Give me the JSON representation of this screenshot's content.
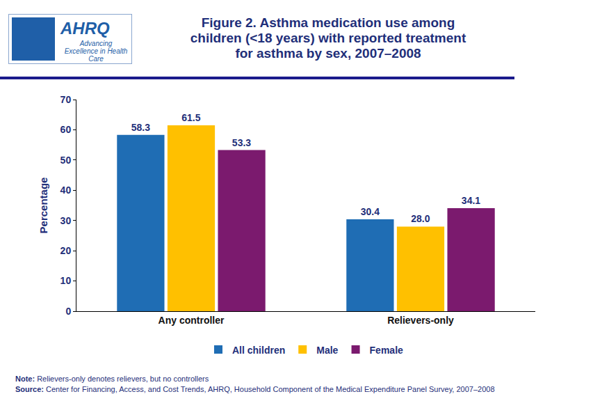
{
  "logo": {
    "name": "AHRQ",
    "tagline": "Advancing Excellence in Health Care"
  },
  "chart_data": {
    "type": "bar",
    "title": "Figure 2. Asthma medication use among children (<18 years) with reported treatment for asthma by sex, 2007–2008",
    "y_label": "Percentage",
    "categories": [
      "Any controller",
      "Relievers-only"
    ],
    "series": [
      {
        "name": "All children",
        "color": "#1f6db4",
        "values": [
          58.3,
          30.4
        ]
      },
      {
        "name": "Male",
        "color": "#ffc000",
        "values": [
          61.5,
          28.0
        ],
        "value_labels": [
          "61.5",
          "28.0"
        ]
      },
      {
        "name": "Female",
        "color": "#7b1a6e",
        "values": [
          53.3,
          34.1
        ]
      }
    ],
    "ylim": [
      0,
      70
    ],
    "yticks": [
      0,
      10,
      20,
      30,
      40,
      50,
      60,
      70
    ],
    "grid": false,
    "data_labels": true,
    "legend": "bottom",
    "annotations": [
      "Note: Relievers-only denotes relievers, but no controllers",
      "Source: Center for Financing, Access, and Cost Trends, AHRQ, Household Component of the Medical Expenditure Panel Survey, 2007–2008"
    ]
  }
}
